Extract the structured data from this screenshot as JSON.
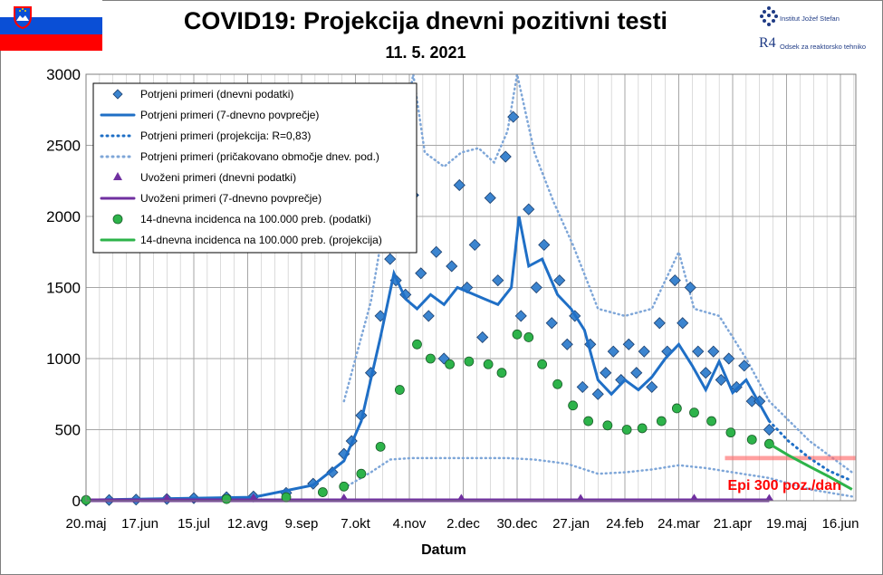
{
  "title": "COVID19: Projekcija dnevni pozitivni testi",
  "subtitle": "11. 5. 2021",
  "logos": {
    "ijs_text": "Institut Jožef Stefan",
    "r4_text": "Odsek za reaktorsko tehniko",
    "r4_mark": "R4"
  },
  "colors": {
    "blue": "#1f6fc6",
    "green": "#2db34a",
    "purple": "#7030a0",
    "threshold": "#ff6b6b",
    "grid": "#a6a6a6"
  },
  "chart_data": {
    "type": "line",
    "xlabel": "Datum",
    "ylabel": "",
    "x_start": "2020-05-20",
    "ylim": [
      0,
      3000
    ],
    "yticks": [
      "0",
      "500",
      "1000",
      "1500",
      "2000",
      "2500",
      "3000"
    ],
    "xticks": [
      "20.maj",
      "17.jun",
      "15.jul",
      "12.avg",
      "9.sep",
      "7.okt",
      "4.nov",
      "2.dec",
      "30.dec",
      "27.jan",
      "24.feb",
      "24.mar",
      "21.apr",
      "19.maj",
      "16.jun"
    ],
    "grid": true,
    "legend_position": "top-left",
    "annotation": {
      "text": "Epi 300 poz./dan",
      "y": 300
    },
    "series": [
      {
        "name": "Potrjeni primeri (dnevni podatki)",
        "style": "diamond",
        "points": [
          [
            "2020-05-20",
            2
          ],
          [
            "2020-06-01",
            5
          ],
          [
            "2020-06-15",
            8
          ],
          [
            "2020-07-01",
            12
          ],
          [
            "2020-07-15",
            18
          ],
          [
            "2020-08-01",
            25
          ],
          [
            "2020-08-15",
            30
          ],
          [
            "2020-09-01",
            55
          ],
          [
            "2020-09-15",
            120
          ],
          [
            "2020-09-25",
            200
          ],
          [
            "2020-10-01",
            330
          ],
          [
            "2020-10-05",
            420
          ],
          [
            "2020-10-10",
            600
          ],
          [
            "2020-10-15",
            900
          ],
          [
            "2020-10-20",
            1300
          ],
          [
            "2020-10-25",
            1700
          ],
          [
            "2020-10-28",
            1550
          ],
          [
            "2020-11-02",
            1450
          ],
          [
            "2020-11-06",
            2150
          ],
          [
            "2020-11-10",
            1600
          ],
          [
            "2020-11-14",
            1300
          ],
          [
            "2020-11-18",
            1750
          ],
          [
            "2020-11-22",
            1000
          ],
          [
            "2020-11-26",
            1650
          ],
          [
            "2020-11-30",
            2220
          ],
          [
            "2020-12-04",
            1500
          ],
          [
            "2020-12-08",
            1800
          ],
          [
            "2020-12-12",
            1150
          ],
          [
            "2020-12-16",
            2130
          ],
          [
            "2020-12-20",
            1550
          ],
          [
            "2020-12-24",
            2420
          ],
          [
            "2020-12-28",
            2700
          ],
          [
            "2021-01-01",
            1300
          ],
          [
            "2021-01-05",
            2050
          ],
          [
            "2021-01-09",
            1500
          ],
          [
            "2021-01-13",
            1800
          ],
          [
            "2021-01-17",
            1250
          ],
          [
            "2021-01-21",
            1550
          ],
          [
            "2021-01-25",
            1100
          ],
          [
            "2021-01-29",
            1300
          ],
          [
            "2021-02-02",
            800
          ],
          [
            "2021-02-06",
            1100
          ],
          [
            "2021-02-10",
            750
          ],
          [
            "2021-02-14",
            900
          ],
          [
            "2021-02-18",
            1050
          ],
          [
            "2021-02-22",
            850
          ],
          [
            "2021-02-26",
            1100
          ],
          [
            "2021-03-02",
            900
          ],
          [
            "2021-03-06",
            1050
          ],
          [
            "2021-03-10",
            800
          ],
          [
            "2021-03-14",
            1250
          ],
          [
            "2021-03-18",
            1050
          ],
          [
            "2021-03-22",
            1550
          ],
          [
            "2021-03-26",
            1250
          ],
          [
            "2021-03-30",
            1500
          ],
          [
            "2021-04-03",
            1050
          ],
          [
            "2021-04-07",
            900
          ],
          [
            "2021-04-11",
            1050
          ],
          [
            "2021-04-15",
            850
          ],
          [
            "2021-04-19",
            1000
          ],
          [
            "2021-04-23",
            800
          ],
          [
            "2021-04-27",
            950
          ],
          [
            "2021-05-01",
            700
          ],
          [
            "2021-05-05",
            700
          ],
          [
            "2021-05-10",
            500
          ]
        ]
      },
      {
        "name": "Potrjeni primeri (7-dnevno povprečje)",
        "style": "line-blue",
        "points": [
          [
            "2020-05-20",
            5
          ],
          [
            "2020-08-15",
            25
          ],
          [
            "2020-09-15",
            110
          ],
          [
            "2020-10-01",
            280
          ],
          [
            "2020-10-10",
            560
          ],
          [
            "2020-10-20",
            1150
          ],
          [
            "2020-10-27",
            1600
          ],
          [
            "2020-11-02",
            1420
          ],
          [
            "2020-11-08",
            1350
          ],
          [
            "2020-11-15",
            1450
          ],
          [
            "2020-11-22",
            1380
          ],
          [
            "2020-11-29",
            1500
          ],
          [
            "2020-12-06",
            1460
          ],
          [
            "2020-12-13",
            1420
          ],
          [
            "2020-12-20",
            1380
          ],
          [
            "2020-12-27",
            1500
          ],
          [
            "2020-12-31",
            2000
          ],
          [
            "2021-01-05",
            1650
          ],
          [
            "2021-01-12",
            1700
          ],
          [
            "2021-01-20",
            1450
          ],
          [
            "2021-01-27",
            1350
          ],
          [
            "2021-02-03",
            1200
          ],
          [
            "2021-02-10",
            850
          ],
          [
            "2021-02-17",
            750
          ],
          [
            "2021-02-24",
            850
          ],
          [
            "2021-03-03",
            780
          ],
          [
            "2021-03-10",
            870
          ],
          [
            "2021-03-17",
            1000
          ],
          [
            "2021-03-24",
            1100
          ],
          [
            "2021-03-31",
            950
          ],
          [
            "2021-04-07",
            780
          ],
          [
            "2021-04-14",
            980
          ],
          [
            "2021-04-21",
            760
          ],
          [
            "2021-04-28",
            850
          ],
          [
            "2021-05-05",
            680
          ],
          [
            "2021-05-10",
            560
          ]
        ]
      },
      {
        "name": "Potrjeni primeri (projekcija: R=0,83)",
        "style": "dotted-blue",
        "points": [
          [
            "2021-05-10",
            560
          ],
          [
            "2021-05-20",
            420
          ],
          [
            "2021-05-31",
            300
          ],
          [
            "2021-06-10",
            210
          ],
          [
            "2021-06-22",
            140
          ]
        ]
      },
      {
        "name": "Potrjeni primeri (pričakovano območje dnev. pod.)",
        "style": "dotted-lightblue",
        "upper": [
          [
            "2020-10-01",
            700
          ],
          [
            "2020-10-15",
            1400
          ],
          [
            "2020-10-25",
            2200
          ],
          [
            "2020-11-02",
            2700
          ],
          [
            "2020-11-06",
            3000
          ],
          [
            "2020-11-12",
            2450
          ],
          [
            "2020-11-22",
            2350
          ],
          [
            "2020-12-01",
            2450
          ],
          [
            "2020-12-10",
            2480
          ],
          [
            "2020-12-18",
            2380
          ],
          [
            "2020-12-25",
            2600
          ],
          [
            "2020-12-30",
            3000
          ],
          [
            "2021-01-08",
            2450
          ],
          [
            "2021-01-18",
            2100
          ],
          [
            "2021-01-28",
            1800
          ],
          [
            "2021-02-10",
            1350
          ],
          [
            "2021-02-24",
            1300
          ],
          [
            "2021-03-10",
            1350
          ],
          [
            "2021-03-24",
            1750
          ],
          [
            "2021-04-01",
            1350
          ],
          [
            "2021-04-14",
            1300
          ],
          [
            "2021-04-28",
            1000
          ],
          [
            "2021-05-10",
            700
          ],
          [
            "2021-05-31",
            420
          ],
          [
            "2021-06-22",
            200
          ]
        ],
        "lower": [
          [
            "2020-10-01",
            90
          ],
          [
            "2020-10-15",
            200
          ],
          [
            "2020-10-25",
            290
          ],
          [
            "2020-11-05",
            300
          ],
          [
            "2020-11-22",
            300
          ],
          [
            "2020-12-10",
            300
          ],
          [
            "2020-12-25",
            300
          ],
          [
            "2021-01-08",
            290
          ],
          [
            "2021-01-25",
            260
          ],
          [
            "2021-02-10",
            190
          ],
          [
            "2021-02-24",
            200
          ],
          [
            "2021-03-10",
            220
          ],
          [
            "2021-03-24",
            250
          ],
          [
            "2021-04-07",
            230
          ],
          [
            "2021-04-21",
            200
          ],
          [
            "2021-05-10",
            160
          ],
          [
            "2021-05-31",
            80
          ],
          [
            "2021-06-22",
            30
          ]
        ]
      },
      {
        "name": "Uvoženi primeri (dnevni podatki)",
        "style": "triangle",
        "points": [
          [
            "2020-05-20",
            2
          ],
          [
            "2020-07-01",
            5
          ],
          [
            "2020-08-15",
            8
          ],
          [
            "2020-10-01",
            6
          ],
          [
            "2020-12-01",
            4
          ],
          [
            "2021-02-01",
            3
          ],
          [
            "2021-04-01",
            5
          ],
          [
            "2021-05-10",
            3
          ]
        ]
      },
      {
        "name": "Uvoženi primeri (7-dnevno povprečje)",
        "style": "line-purple",
        "points": [
          [
            "2020-05-20",
            3
          ],
          [
            "2021-05-10",
            3
          ]
        ]
      },
      {
        "name": "14-dnevna incidenca na 100.000 preb. (podatki)",
        "style": "circle",
        "points": [
          [
            "2020-05-20",
            5
          ],
          [
            "2020-08-01",
            12
          ],
          [
            "2020-09-01",
            25
          ],
          [
            "2020-09-20",
            60
          ],
          [
            "2020-10-01",
            100
          ],
          [
            "2020-10-10",
            190
          ],
          [
            "2020-10-20",
            380
          ],
          [
            "2020-10-30",
            780
          ],
          [
            "2020-11-08",
            1100
          ],
          [
            "2020-11-15",
            1000
          ],
          [
            "2020-11-25",
            960
          ],
          [
            "2020-12-05",
            980
          ],
          [
            "2020-12-15",
            960
          ],
          [
            "2020-12-22",
            900
          ],
          [
            "2020-12-30",
            1170
          ],
          [
            "2021-01-05",
            1150
          ],
          [
            "2021-01-12",
            960
          ],
          [
            "2021-01-20",
            820
          ],
          [
            "2021-01-28",
            670
          ],
          [
            "2021-02-05",
            560
          ],
          [
            "2021-02-15",
            530
          ],
          [
            "2021-02-25",
            500
          ],
          [
            "2021-03-05",
            510
          ],
          [
            "2021-03-15",
            560
          ],
          [
            "2021-03-23",
            650
          ],
          [
            "2021-04-01",
            620
          ],
          [
            "2021-04-10",
            560
          ],
          [
            "2021-04-20",
            480
          ],
          [
            "2021-05-01",
            430
          ],
          [
            "2021-05-10",
            400
          ]
        ]
      },
      {
        "name": "14-dnevna incidenca na 100.000 preb. (projekcija)",
        "style": "line-green",
        "points": [
          [
            "2021-05-10",
            400
          ],
          [
            "2021-05-20",
            320
          ],
          [
            "2021-05-31",
            240
          ],
          [
            "2021-06-10",
            170
          ],
          [
            "2021-06-22",
            80
          ]
        ]
      }
    ]
  }
}
